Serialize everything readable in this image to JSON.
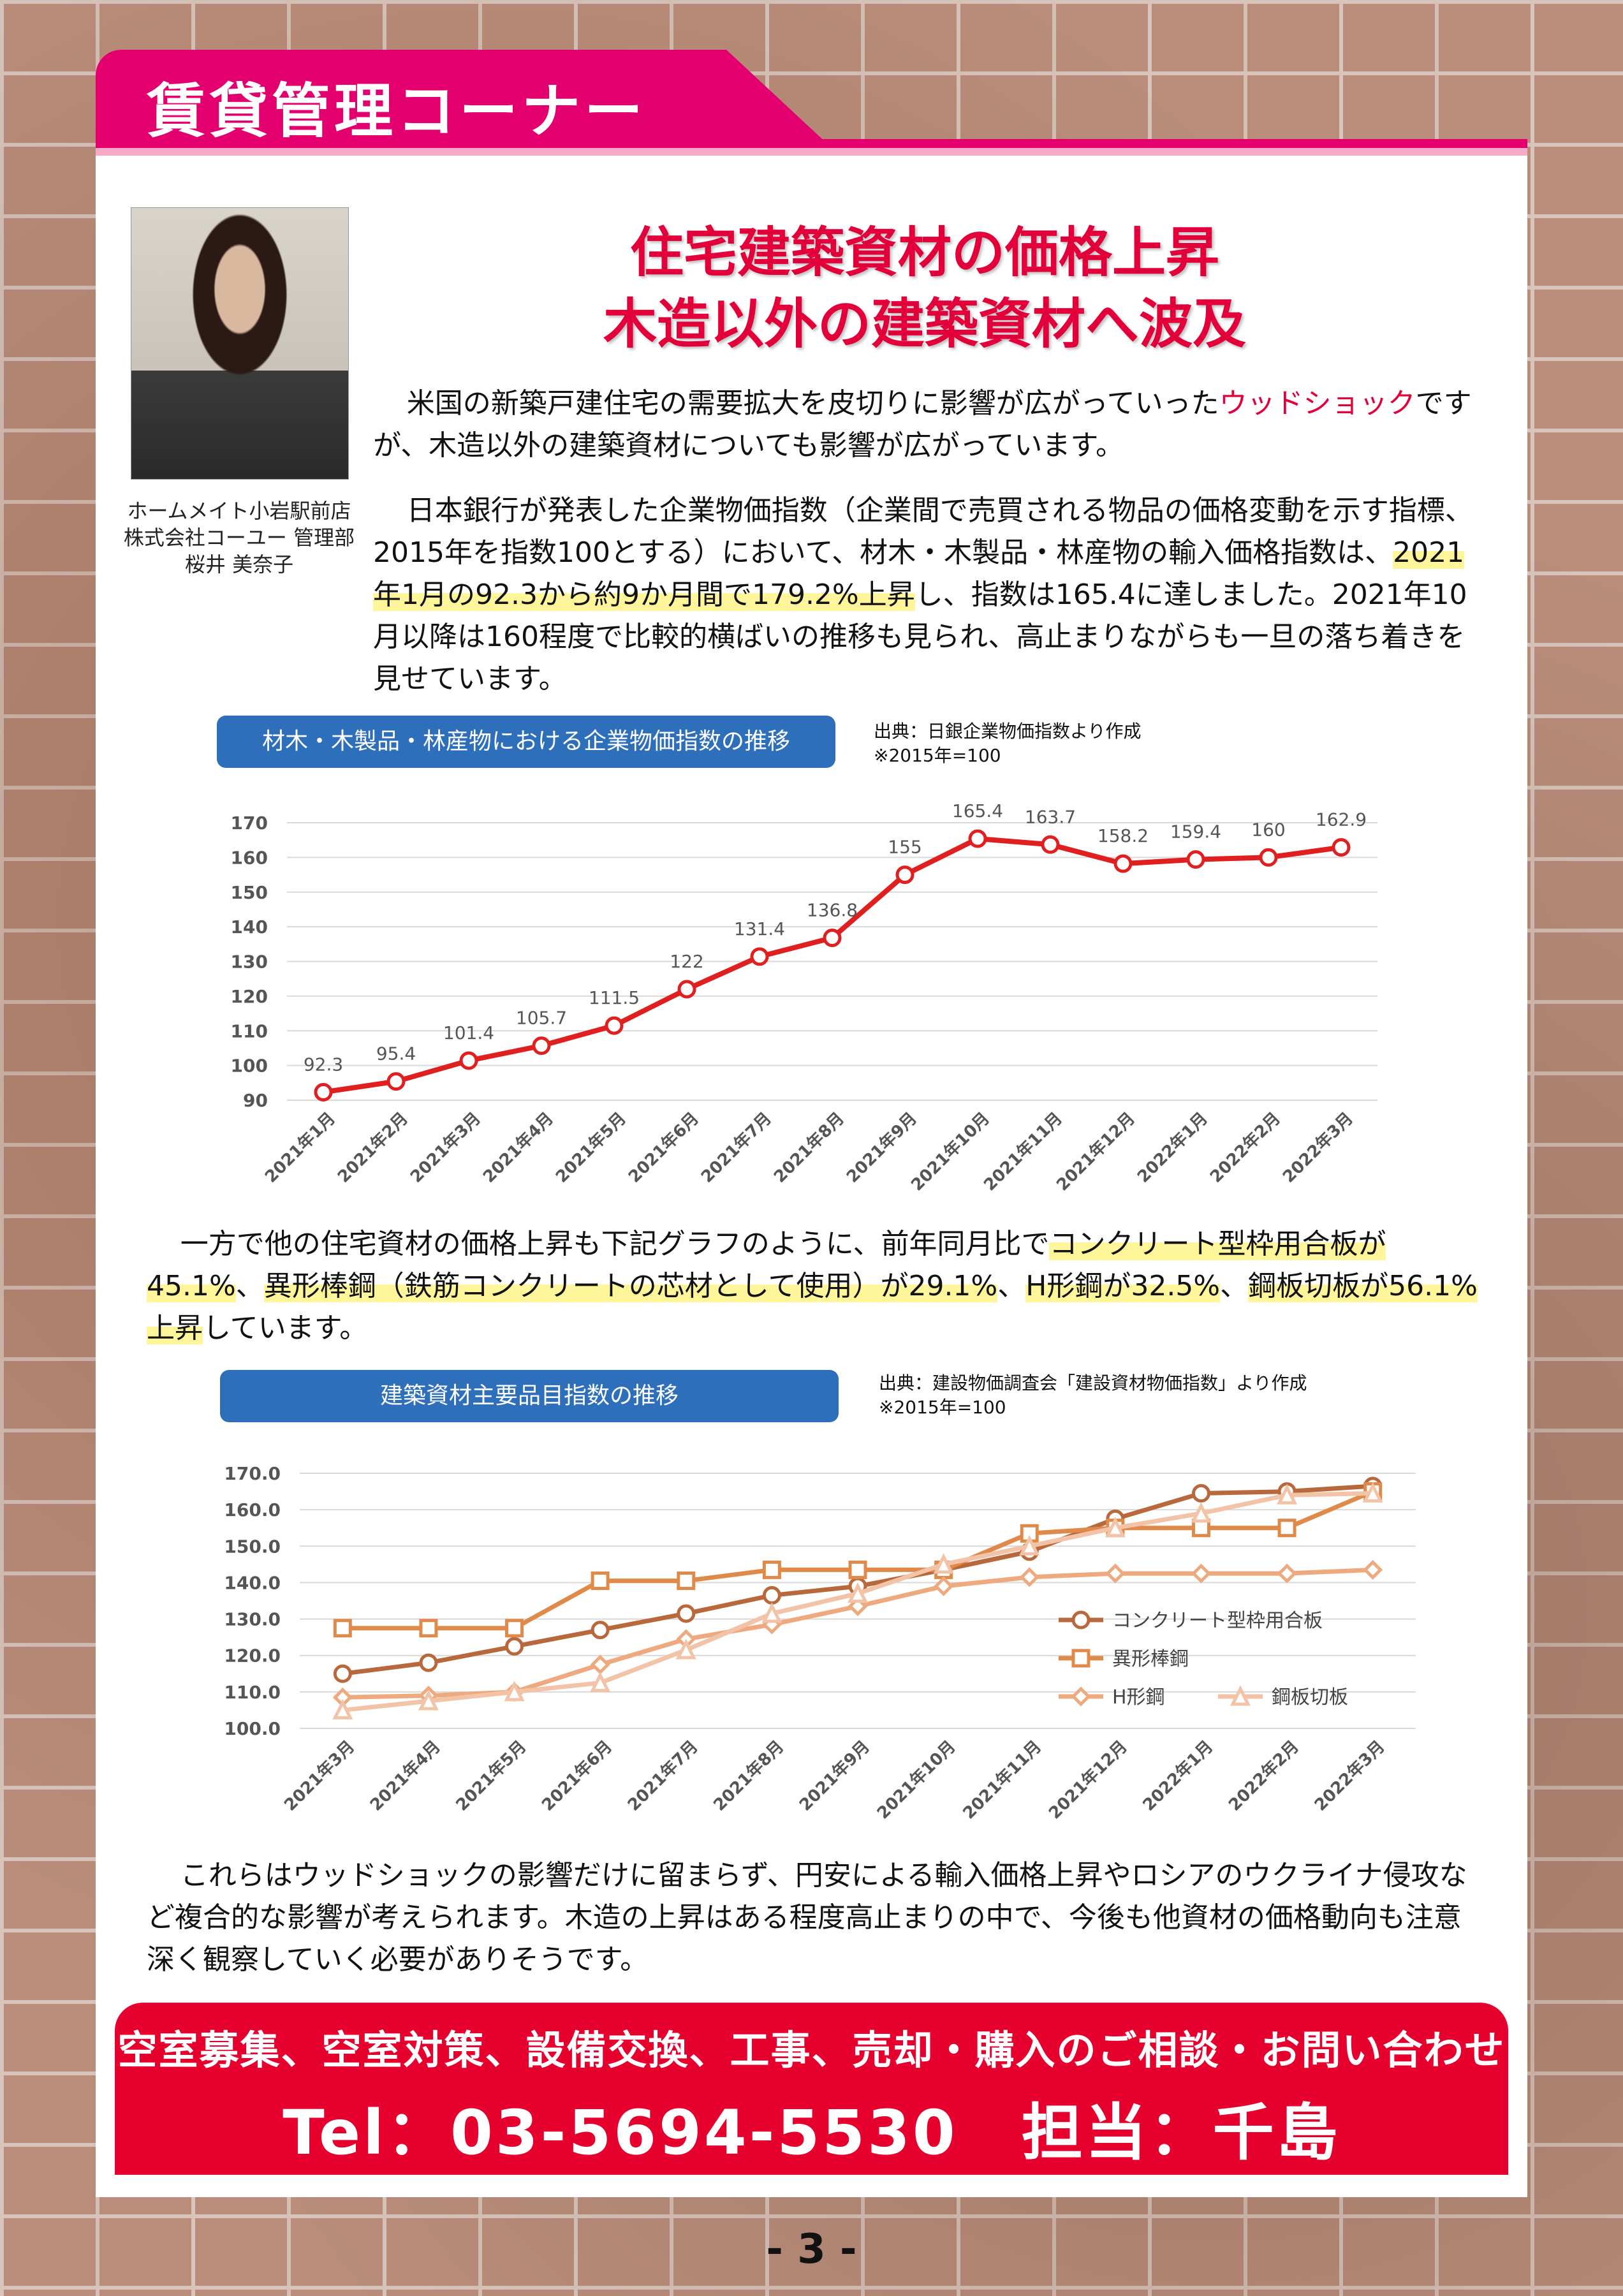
{
  "header": {
    "corner_title": "賃貸管理コーナー"
  },
  "author": {
    "line1": "ホームメイト小岩駅前店",
    "line2": "株式会社コーユー 管理部",
    "line3": "桜井 美奈子"
  },
  "article": {
    "title_line1": "住宅建築資材の価格上昇",
    "title_line2": "木造以外の建築資材へ波及",
    "p1_a": "米国の新築戸建住宅の需要拡大を皮切りに影響が広がっていった",
    "p1_red": "ウッドショック",
    "p1_b": "ですが、木造以外の建築資材についても影響が広がっています。",
    "p2_a": "日本銀行が発表した企業物価指数（企業間で売買される物品の価格変動を示す指標、2015年を指数100とする）において、材木・木製品・林産物の輸入価格指数は、",
    "p2_hl": "2021年1月の92.3から約9か月間で179.2%上昇",
    "p2_b": "し、指数は165.4に達しました。2021年10月以降は160程度で比較的横ばいの推移も見られ、高止まりながらも一旦の落ち着きを見せています。",
    "p3_a": "一方で他の住宅資材の価格上昇も下記グラフのように、前年同月比で",
    "p3_hl1": "コンクリート型枠用合板が45.1%",
    "p3_b": "、",
    "p3_hl2": "異形棒鋼（鉄筋コンクリートの芯材として使用）が29.1%",
    "p3_c": "、",
    "p3_hl3": "H形鋼が32.5%",
    "p3_d": "、",
    "p3_hl4": "鋼板切板が56.1%上昇",
    "p3_e": "しています。",
    "p4": "これらはウッドショックの影響だけに留まらず、円安による輸入価格上昇やロシアのウクライナ侵攻など複合的な影響が考えられます。木造の上昇はある程度高止まりの中で、今後も他資材の価格動向も注意深く観察していく必要がありそうです。"
  },
  "chart1_meta": {
    "label": "材木・木製品・林産物における企業物価指数の推移",
    "source1": "出典：日銀企業物価指数より作成",
    "source2": "※2015年=100"
  },
  "chart2_meta": {
    "label": "建築資材主要品目指数の推移",
    "source1": "出典：建設物価調査会「建設資材物価指数」より作成",
    "source2": "※2015年=100"
  },
  "chart_data": [
    {
      "type": "line",
      "title": "材木・木製品・林産物における企業物価指数の推移",
      "categories": [
        "2021年1月",
        "2021年2月",
        "2021年3月",
        "2021年4月",
        "2021年5月",
        "2021年6月",
        "2021年7月",
        "2021年8月",
        "2021年9月",
        "2021年10月",
        "2021年11月",
        "2021年12月",
        "2022年1月",
        "2022年2月",
        "2022年3月"
      ],
      "series": [
        {
          "values": [
            92.3,
            95.4,
            101.4,
            105.7,
            111.5,
            122,
            131.4,
            136.8,
            155,
            165.4,
            163.7,
            158.2,
            159.4,
            160,
            162.9
          ],
          "color": "#e02020"
        }
      ],
      "data_labels": [
        "92.3",
        "95.4",
        "101.4",
        "105.7",
        "111.5",
        "122",
        "131.4",
        "136.8",
        "155",
        "165.4",
        "163.7",
        "158.2",
        "159.4",
        "160",
        "162.9"
      ],
      "yticks": [
        "170",
        "160",
        "150",
        "140",
        "130",
        "120",
        "110",
        "100",
        "90"
      ],
      "ylim": [
        90,
        170
      ],
      "grid": true
    },
    {
      "type": "line",
      "title": "建築資材主要品目指数の推移",
      "categories": [
        "2021年3月",
        "2021年4月",
        "2021年5月",
        "2021年6月",
        "2021年7月",
        "2021年8月",
        "2021年9月",
        "2021年10月",
        "2021年11月",
        "2021年12月",
        "2022年1月",
        "2022年2月",
        "2022年3月"
      ],
      "series": [
        {
          "name": "コンクリート型枠用合板",
          "marker": "circle",
          "color": "#b8683a",
          "values": [
            115,
            118,
            122.5,
            127,
            131.5,
            136.5,
            139,
            143.5,
            148.5,
            157.5,
            164.5,
            165,
            166.5
          ]
        },
        {
          "name": "異形棒鋼",
          "marker": "square",
          "color": "#e08a4a",
          "values": [
            127.5,
            127.5,
            127.5,
            140.5,
            140.5,
            143.5,
            143.5,
            143.5,
            153.5,
            155,
            155,
            155,
            165
          ]
        },
        {
          "name": "H形鋼",
          "marker": "diamond",
          "color": "#eeaa7e",
          "values": [
            108.5,
            109,
            110,
            117.5,
            124.5,
            128.5,
            133.5,
            139,
            141.5,
            142.5,
            142.5,
            142.5,
            143.5
          ]
        },
        {
          "name": "鋼板切板",
          "marker": "triangle",
          "color": "#f3c3a8",
          "values": [
            105,
            107.5,
            110,
            112.5,
            121.5,
            131.5,
            137,
            145,
            150,
            155,
            159,
            164,
            164.5
          ]
        }
      ],
      "yticks": [
        "170.0",
        "160.0",
        "150.0",
        "140.0",
        "130.0",
        "120.0",
        "110.0",
        "100.0"
      ],
      "ylim": [
        100,
        170
      ],
      "grid": true,
      "legend": "right"
    }
  ],
  "cta": {
    "line1": "空室募集、空室対策、設備交換、工事、売却・購入のご相談・お問い合わせ",
    "line2": "Tel：03-5694-5530　担当：千島"
  },
  "page_number": "- 3 -"
}
